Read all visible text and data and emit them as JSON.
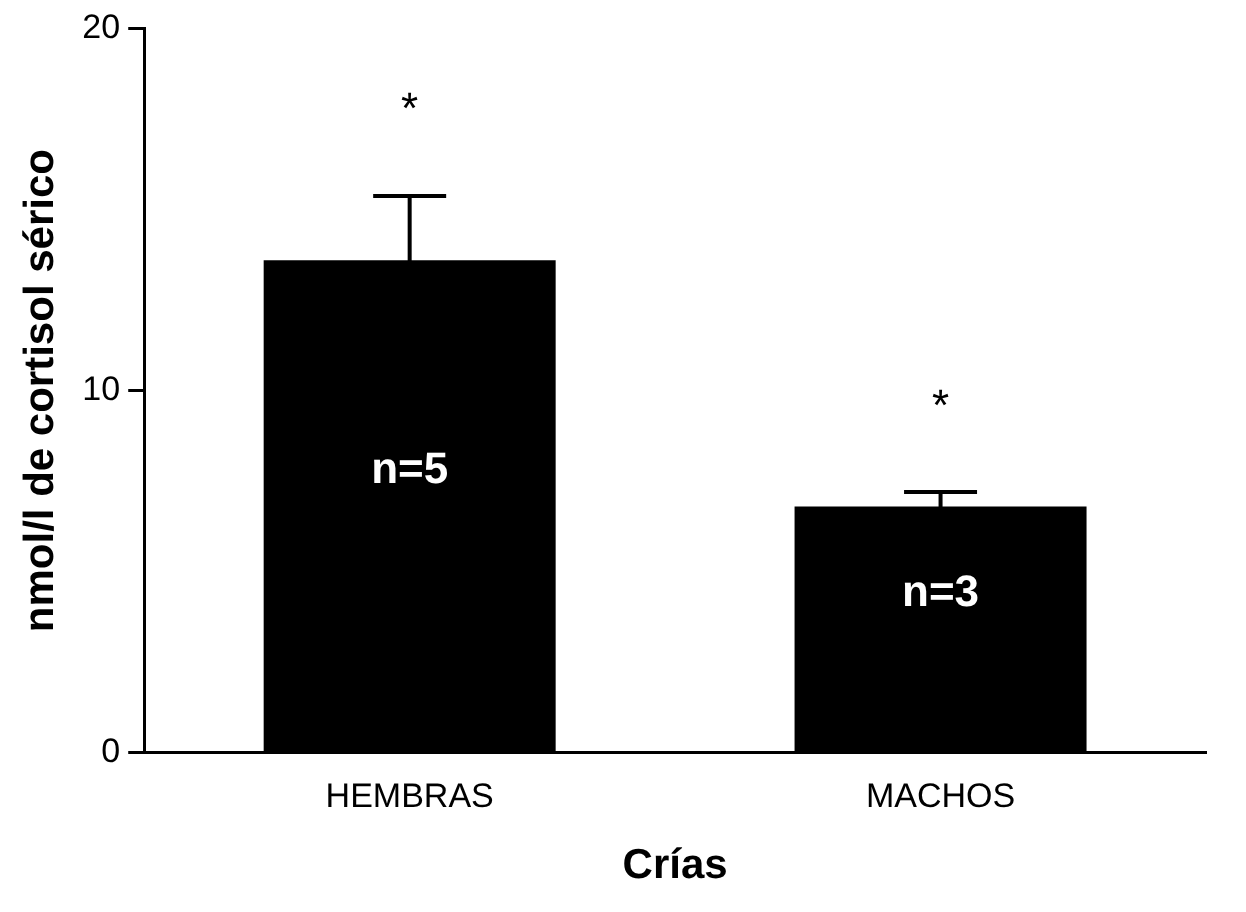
{
  "chart_data": {
    "type": "bar",
    "xlabel": "Crías",
    "ylabel": "nmol/l de cortisol sérico",
    "categories": [
      "HEMBRAS",
      "MACHOS"
    ],
    "values": [
      13.6,
      6.8
    ],
    "errors": [
      1.8,
      0.4
    ],
    "color": "#000000",
    "ylim": [
      0,
      20
    ],
    "yticks": [
      0,
      10,
      20
    ],
    "grid": false,
    "annotations": [
      "*",
      "*",
      "n=5",
      "n=3"
    ]
  }
}
